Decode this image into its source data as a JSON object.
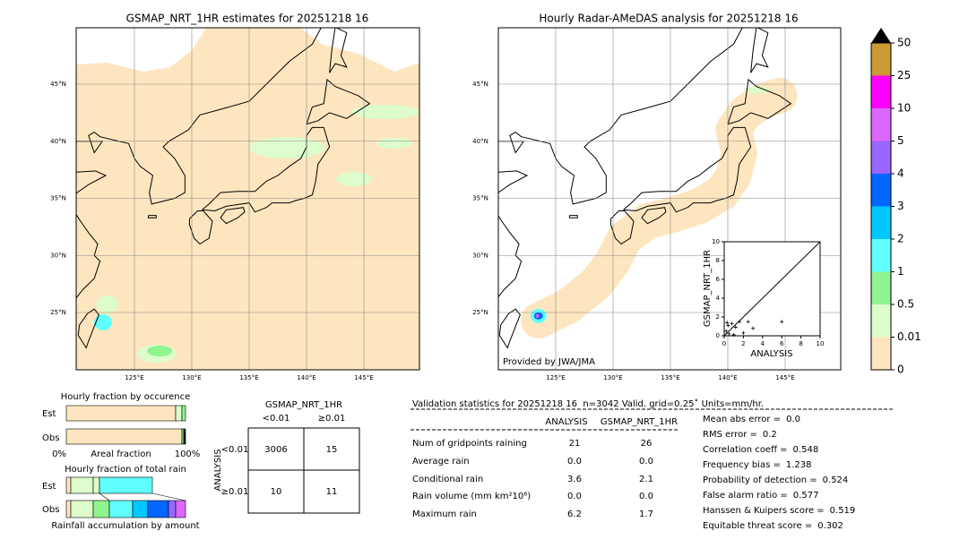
{
  "left_map": {
    "title": "GSMAP_NRT_1HR estimates for 20251218 16",
    "lat_labels": [
      "45°N",
      "40°N",
      "35°N",
      "30°N",
      "25°N"
    ],
    "lon_labels": [
      "125°E",
      "130°E",
      "135°E",
      "140°E",
      "145°E"
    ]
  },
  "right_map": {
    "title": "Hourly Radar-AMeDAS analysis for 20251218 16",
    "lat_labels": [
      "45°N",
      "40°N",
      "35°N",
      "30°N",
      "25°N"
    ],
    "lon_labels": [
      "125°E",
      "130°E",
      "135°E",
      "140°E",
      "145°E"
    ],
    "credit": "Provided by JWA/JMA"
  },
  "colorbar": {
    "levels": [
      0,
      0.01,
      0.5,
      1,
      2,
      3,
      4,
      5,
      10,
      25,
      50
    ],
    "colors": [
      "#fde6bf",
      "#ddfdcc",
      "#8ff58f",
      "#60fffd",
      "#00c8ff",
      "#0066ff",
      "#9966ff",
      "#dd66ff",
      "#ff00ff",
      "#cc9933"
    ]
  },
  "scatter": {
    "xlabel": "ANALYSIS",
    "ylabel": "GSMAP_NRT_1HR",
    "xticks": [
      0,
      2,
      4,
      6,
      8,
      10
    ],
    "yticks": [
      0,
      2,
      4,
      6,
      8,
      10
    ],
    "points": [
      [
        0.2,
        0.5
      ],
      [
        0.4,
        1.1
      ],
      [
        0.8,
        1.3
      ],
      [
        1.2,
        0.9
      ],
      [
        1.6,
        1.5
      ],
      [
        2.5,
        1.5
      ],
      [
        3,
        0.8
      ],
      [
        6,
        1.5
      ],
      [
        0.5,
        0.2
      ],
      [
        1,
        0.1
      ],
      [
        2,
        0.3
      ],
      [
        0.3,
        1.4
      ]
    ]
  },
  "occurrence": {
    "title": "Hourly fraction by occurence",
    "rows": [
      "Est",
      "Obs"
    ],
    "axis": [
      "0%",
      "Areal fraction",
      "100%"
    ]
  },
  "total_rain": {
    "title": "Hourly fraction of total rain",
    "rows": [
      "Est",
      "Obs"
    ],
    "caption": "Rainfall accumulation by amount"
  },
  "contingency": {
    "col_title": "GSMAP_NRT_1HR",
    "col_labels": [
      "<0.01",
      "≥0.01"
    ],
    "row_title": "ANALYSIS",
    "row_labels": [
      "<0.01",
      "≥0.01"
    ],
    "cells": [
      [
        "3006",
        "15"
      ],
      [
        "10",
        "11"
      ]
    ]
  },
  "validation": {
    "title": "Validation statistics for 20251218 16  n=3042 Valid. grid=0.25˚ Units=mm/hr.",
    "columns": [
      "ANALYSIS",
      "GSMAP_NRT_1HR"
    ],
    "rows": [
      [
        "Num of gridpoints raining",
        "21",
        "26"
      ],
      [
        "Average rain",
        "0.0",
        "0.0"
      ],
      [
        "Conditional rain",
        "3.6",
        "2.1"
      ],
      [
        "Rain volume (mm km²10⁶)",
        "0.0",
        "0.0"
      ],
      [
        "Maximum rain",
        "6.2",
        "1.7"
      ]
    ],
    "scores": [
      [
        "Mean abs error =",
        "0.0"
      ],
      [
        "RMS error =",
        "0.2"
      ],
      [
        "Correlation coeff =",
        "0.548"
      ],
      [
        "Frequency bias =",
        "1.238"
      ],
      [
        "Probability of detection =",
        "0.524"
      ],
      [
        "False alarm ratio =",
        "0.577"
      ],
      [
        "Hanssen & Kuipers score =",
        "0.519"
      ],
      [
        "Equitable threat score =",
        "0.302"
      ]
    ]
  }
}
